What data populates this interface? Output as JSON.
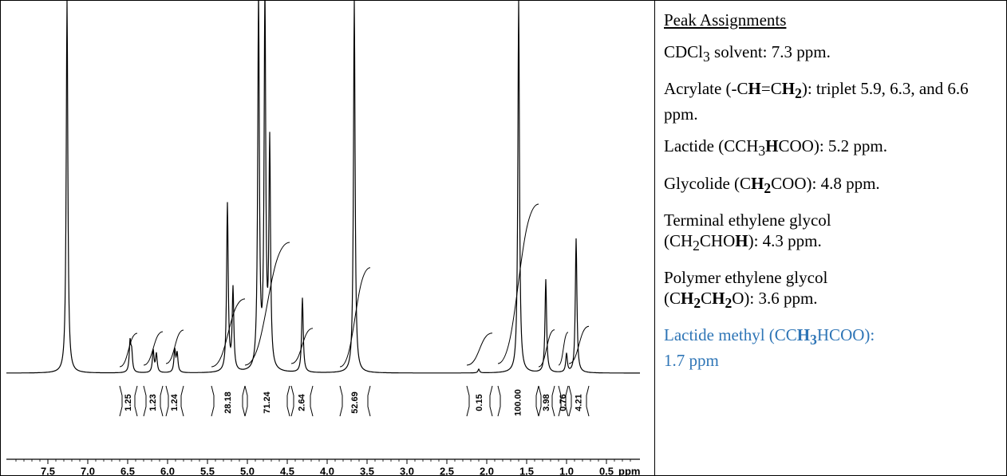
{
  "chart_data": {
    "type": "line",
    "title": "",
    "xlabel": "ppm",
    "xlim": [
      7.9,
      0.2
    ],
    "x_reversed": true,
    "x_ticks": [
      "7.5",
      "7.0",
      "6.5",
      "6.0",
      "5.5",
      "5.0",
      "4.5",
      "4.0",
      "3.5",
      "3.0",
      "2.5",
      "2.0",
      "1.5",
      "1.0",
      "0.5"
    ],
    "peaks": [
      {
        "ppm": 7.26,
        "rel_height": 1.0
      },
      {
        "ppm": 6.47,
        "rel_height": 0.08
      },
      {
        "ppm": 6.45,
        "rel_height": 0.05
      },
      {
        "ppm": 6.18,
        "rel_height": 0.06
      },
      {
        "ppm": 6.14,
        "rel_height": 0.05
      },
      {
        "ppm": 5.91,
        "rel_height": 0.06
      },
      {
        "ppm": 5.88,
        "rel_height": 0.05
      },
      {
        "ppm": 5.25,
        "rel_height": 0.45
      },
      {
        "ppm": 5.18,
        "rel_height": 0.22
      },
      {
        "ppm": 4.86,
        "rel_height": 1.0
      },
      {
        "ppm": 4.78,
        "rel_height": 1.0
      },
      {
        "ppm": 4.72,
        "rel_height": 0.6
      },
      {
        "ppm": 4.31,
        "rel_height": 0.2
      },
      {
        "ppm": 3.66,
        "rel_height": 1.0
      },
      {
        "ppm": 2.1,
        "rel_height": 0.01
      },
      {
        "ppm": 1.6,
        "rel_height": 1.0
      },
      {
        "ppm": 1.26,
        "rel_height": 0.25
      },
      {
        "ppm": 1.0,
        "rel_height": 0.05
      },
      {
        "ppm": 0.88,
        "rel_height": 0.36
      }
    ],
    "integrals": [
      {
        "from": 6.6,
        "to": 6.38,
        "value": "1.25"
      },
      {
        "from": 6.3,
        "to": 6.06,
        "value": "1.23"
      },
      {
        "from": 6.02,
        "to": 5.8,
        "value": "1.24"
      },
      {
        "from": 5.45,
        "to": 5.03,
        "value": "28.18"
      },
      {
        "from": 5.03,
        "to": 4.47,
        "value": "71.24"
      },
      {
        "from": 4.45,
        "to": 4.18,
        "value": "2.64"
      },
      {
        "from": 3.84,
        "to": 3.46,
        "value": "52.69"
      },
      {
        "from": 2.25,
        "to": 1.93,
        "value": "0.15"
      },
      {
        "from": 1.86,
        "to": 1.35,
        "value": "100.00"
      },
      {
        "from": 1.35,
        "to": 1.15,
        "value": "3.98"
      },
      {
        "from": 1.1,
        "to": 0.98,
        "value": "0.76"
      },
      {
        "from": 0.97,
        "to": 0.72,
        "value": "4.21"
      }
    ]
  },
  "assignments": {
    "heading": "Peak Assignments",
    "cdcl3": {
      "formula_pre": "CDCl",
      "sub": "3",
      "rest": " solvent: 7.3 ppm."
    },
    "acrylate": {
      "pre": "Acrylate (-C",
      "b1": "H",
      "mid": "=C",
      "b2": "H",
      "sub": "2",
      "post": "): triplet 5.9, 6.3, and 6.6 ppm."
    },
    "lactide": {
      "pre": "Lactide (CCH",
      "sub": "3",
      "b": "H",
      "post": "COO): 5.2 ppm."
    },
    "glycolide": {
      "pre": "Glycolide (C",
      "b": "H",
      "sub": "2",
      "post": "COO): 4.8 ppm."
    },
    "terminal": {
      "line1": "Terminal ethylene glycol",
      "pre": "(CH",
      "sub": "2",
      "mid": "CHO",
      "b": "H",
      "post": "): 4.3 ppm."
    },
    "polymer": {
      "line1": "Polymer ethylene glycol",
      "pre": "(C",
      "b1": "H",
      "sub1": "2",
      "mid": "C",
      "b2": "H",
      "sub2": "2",
      "post": "O): 3.6 ppm."
    },
    "methyl": {
      "pre": "Lactide methyl (CC",
      "b": "H",
      "sub": "3",
      "post": "HCOO):",
      "line2": "1.7 ppm",
      "color": "#2e75b6"
    }
  }
}
